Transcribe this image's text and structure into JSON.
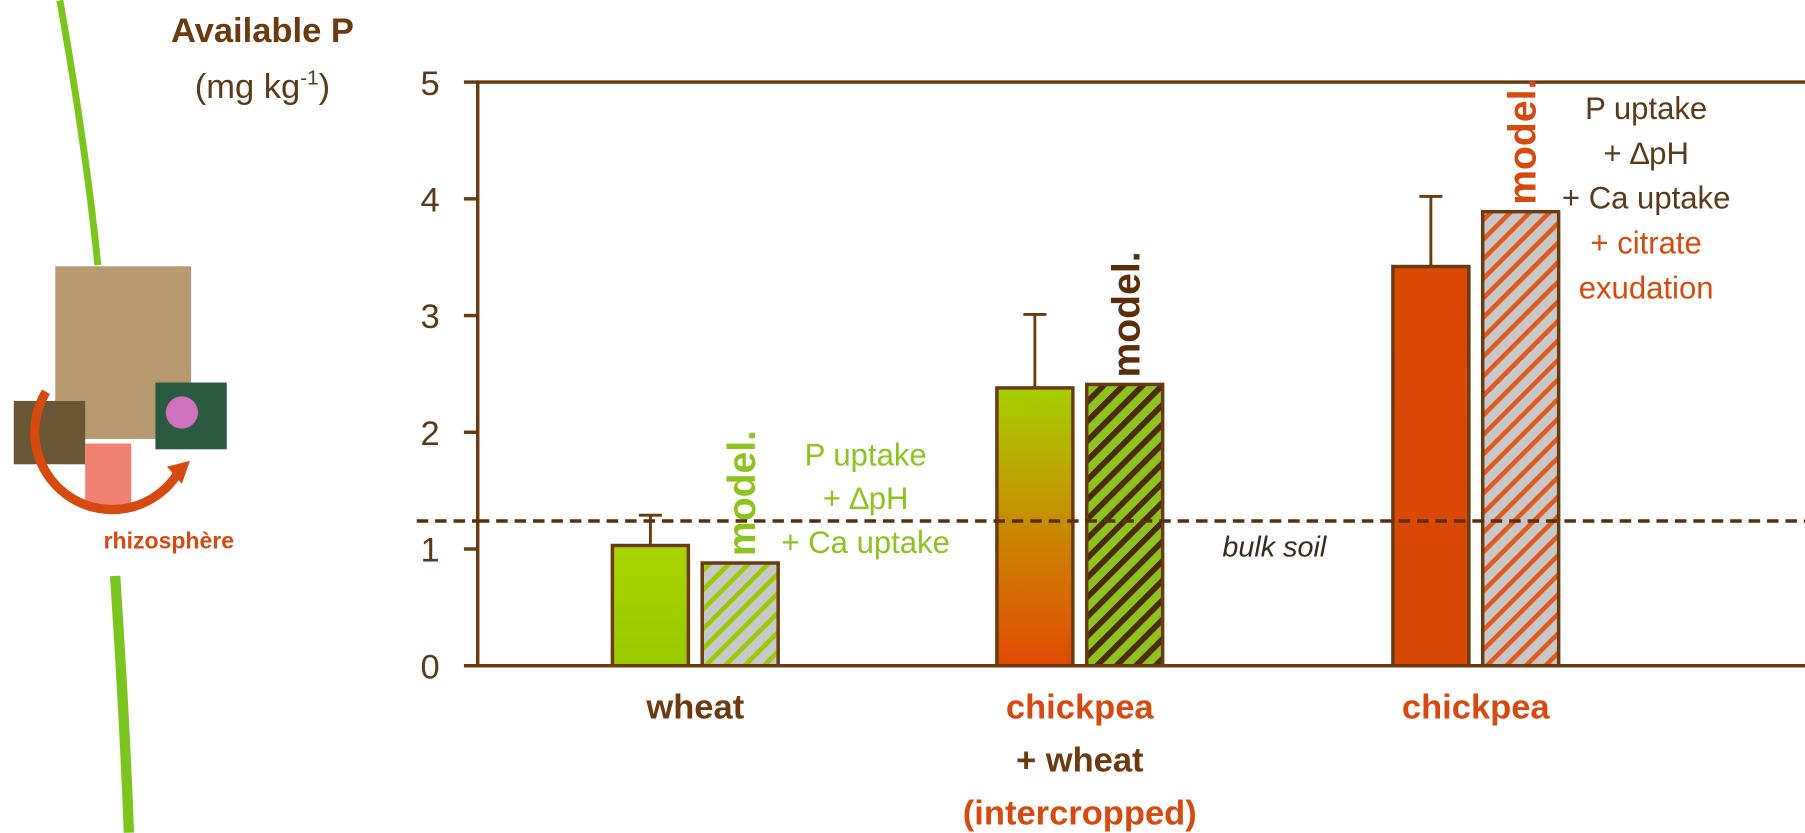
{
  "chart_data": {
    "type": "bar",
    "ylabel": "Available P",
    "yunit": {
      "text": "(mg kg",
      "sup": "-1",
      "close": ")"
    },
    "ylim": [
      0,
      5
    ],
    "yticks": [
      0,
      1,
      2,
      3,
      4,
      5
    ],
    "categories": [
      [
        "wheat"
      ],
      [
        "chickpea",
        "+ wheat",
        "(intercropped)"
      ],
      [
        "chickpea"
      ]
    ],
    "category_line_colors": [
      [
        "#6b3a0e"
      ],
      [
        "#d64a10",
        "#6b3a0e",
        "#d64a10"
      ],
      [
        "#d64a10"
      ]
    ],
    "series": [
      {
        "values": [
          1.03,
          2.38,
          3.42
        ],
        "errors": [
          0.26,
          0.63,
          0.6
        ]
      },
      {
        "values": [
          0.88,
          2.41,
          3.89
        ],
        "labels": [
          "model.",
          "model.",
          "model."
        ],
        "label_colors": [
          "#8dc21f",
          "#5a2e0a",
          "#d64a10"
        ]
      }
    ],
    "reference": {
      "value": 1.24,
      "label": "bulk soil"
    },
    "annotations": [
      {
        "lines": [
          "P uptake",
          "+ ∆pH",
          "+ Ca uptake"
        ],
        "colors": [
          "#8dc21f",
          "#8dc21f",
          "#8dc21f"
        ]
      },
      {
        "lines": [
          "P uptake",
          "+ ∆pH",
          "+ Ca uptake",
          "+ citrate",
          "exudation"
        ],
        "colors": [
          "#5a3a1a",
          "#5a3a1a",
          "#5a3a1a",
          "#d64a10",
          "#d64a10"
        ]
      }
    ],
    "side_label": "rhizosphère"
  }
}
